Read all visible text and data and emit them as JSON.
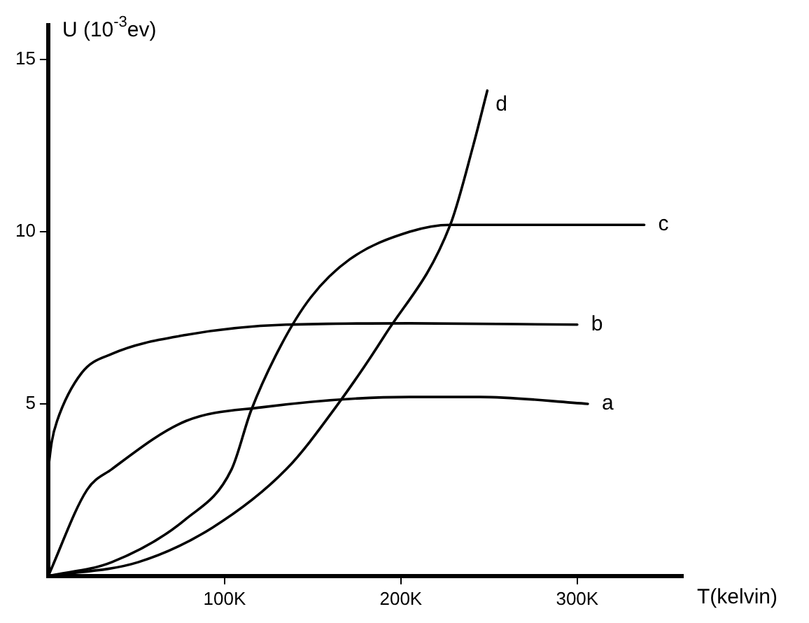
{
  "chart_data": {
    "type": "line",
    "xlabel": "T(kelvin)",
    "ylabel": "U (10$^{-3}$ev)",
    "xlim": [
      0,
      360
    ],
    "ylim": [
      0,
      16
    ],
    "xticks": [
      {
        "value": 100,
        "label": "100K"
      },
      {
        "value": 200,
        "label": "200K"
      },
      {
        "value": 300,
        "label": "300K"
      }
    ],
    "yticks": [
      5,
      10,
      15
    ],
    "grid": false,
    "legend": false,
    "marker": "none",
    "line_style": "solid",
    "series": [
      {
        "name": "a",
        "color": "#000000",
        "x": [
          0,
          22,
          36,
          78,
          121,
          205,
          245,
          306
        ],
        "values": [
          0,
          2.5,
          3.1,
          4.5,
          4.9,
          5.2,
          5.2,
          5.0
        ]
      },
      {
        "name": "b",
        "color": "#000000",
        "x": [
          0,
          2,
          5,
          19,
          36,
          78,
          135,
          205,
          300
        ],
        "values": [
          3.1,
          3.9,
          4.5,
          5.9,
          6.45,
          7.0,
          7.3,
          7.34,
          7.3
        ]
      },
      {
        "name": "c",
        "color": "#000000",
        "x": [
          0,
          36,
          78,
          104,
          115,
          132,
          149,
          171,
          205,
          228,
          338
        ],
        "values": [
          0,
          0.4,
          1.65,
          3.1,
          4.8,
          6.7,
          8.1,
          9.2,
          10.0,
          10.2,
          10.2
        ]
      },
      {
        "name": "d",
        "color": "#000000",
        "x": [
          0,
          51,
          93,
          135,
          163,
          191,
          228,
          241,
          249
        ],
        "values": [
          0,
          0.4,
          1.4,
          3.1,
          4.9,
          7.0,
          10.2,
          12.5,
          14.1
        ]
      }
    ]
  }
}
